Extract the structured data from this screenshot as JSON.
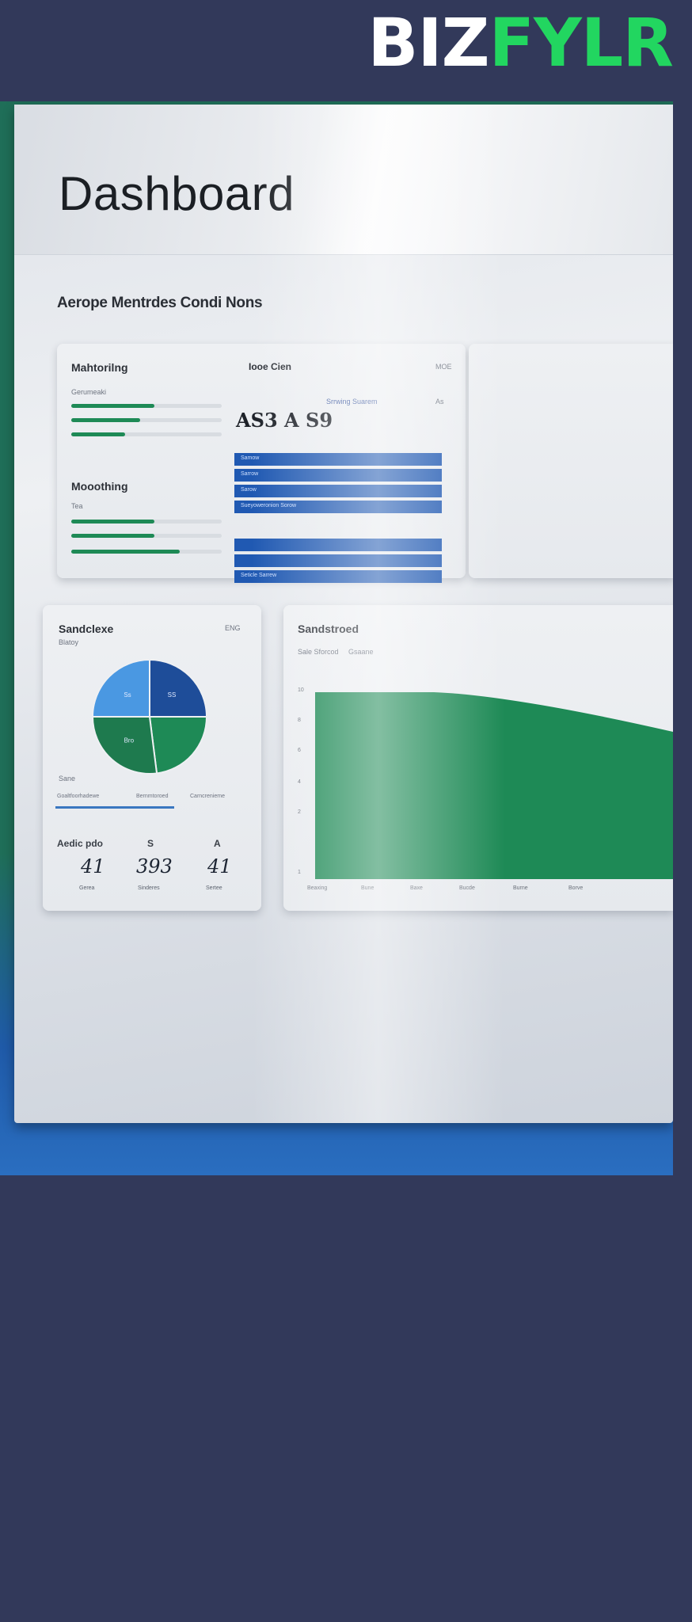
{
  "brand": {
    "part1": "BIZ",
    "part2": "FYLR"
  },
  "dashboard": {
    "title": "Dashboard",
    "subtitle": "Aerope Mentrdes Condi Nons",
    "card1": {
      "left_title": "Mahtorilng",
      "left_sub": "Gerumeaki",
      "left_title2": "Mooothing",
      "left_sub2": "Tea",
      "bars_top": [
        0.55,
        0.46,
        0.36
      ],
      "bars_bottom": [
        0.55,
        0.55,
        0.72
      ],
      "right_title": "Iooe Cien",
      "right_corner": "MOE",
      "big_number": "AS3 A S9",
      "big_number_caption": "Srrwing Suarem",
      "big_number_side": "As",
      "rows_top": [
        "Samow",
        "Sarrow",
        "Sarow",
        "Sueyoweronion Sorow"
      ],
      "rows_bottom": [
        "",
        "",
        "Seticle Sarrew"
      ]
    },
    "card2": {
      "title": "Sandclexe",
      "corner": "ENG",
      "sub": "Blatoy",
      "pie": {
        "slices": [
          {
            "label": "SS",
            "value": 25,
            "color": "#1e4d99"
          },
          {
            "label": "",
            "value": 23,
            "color": "#1e8a56"
          },
          {
            "label": "Bro",
            "value": 27,
            "color": "#1e7a4e"
          },
          {
            "label": "Ss",
            "value": 25,
            "color": "#4a98e2"
          }
        ]
      },
      "legend_left": "Sane",
      "legend_a": "Goaltfoorhadewe",
      "legend_b": "Bernmtoroed",
      "legend_c": "Carncrenieme",
      "stats_label": "Aedic pdo",
      "stat_heads": [
        "",
        "S",
        "A"
      ],
      "stats": [
        {
          "value": "41",
          "caption": "Gerea"
        },
        {
          "value": "393",
          "caption": "Sinderes"
        },
        {
          "value": "41",
          "caption": "Sertee"
        }
      ]
    },
    "card3": {
      "title": "Sandstroed",
      "sub_a": "Sale Sforcod",
      "sub_b": "Gsaane",
      "y_ticks": [
        "10",
        "8",
        "6",
        "4",
        "2",
        "1"
      ],
      "x_ticks": [
        "Beaxing",
        "Bune",
        "Baxe",
        "Bucde",
        "Burne",
        "Borve"
      ],
      "area_color": "#1e8a56"
    }
  }
}
